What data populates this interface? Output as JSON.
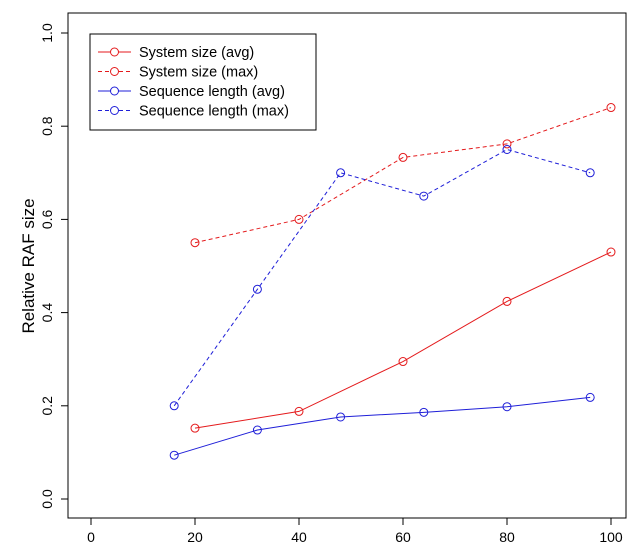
{
  "chart_data": {
    "type": "line",
    "title": "",
    "xlabel": "",
    "ylabel": "Relative RAF size",
    "xlim": [
      0,
      100
    ],
    "ylim": [
      0.0,
      1.0
    ],
    "x_ticks": [
      0,
      20,
      40,
      60,
      80,
      100
    ],
    "y_ticks": [
      0.0,
      0.2,
      0.4,
      0.6,
      0.8,
      1.0
    ],
    "x_tick_labels": [
      "0",
      "20",
      "40",
      "60",
      "80",
      "100"
    ],
    "y_tick_labels": [
      "0.0",
      "0.2",
      "0.4",
      "0.6",
      "0.8",
      "1.0"
    ],
    "grid": false,
    "legend_position": "top-left",
    "series": [
      {
        "name": "System size (avg)",
        "color": "#e41a1c",
        "dash": "solid",
        "marker": "open-circle",
        "x": [
          20,
          40,
          60,
          80,
          100
        ],
        "values": [
          0.152,
          0.188,
          0.295,
          0.424,
          0.53
        ]
      },
      {
        "name": "System size (max)",
        "color": "#e41a1c",
        "dash": "dashed",
        "marker": "open-circle",
        "x": [
          20,
          40,
          60,
          80,
          100
        ],
        "values": [
          0.55,
          0.6,
          0.733,
          0.762,
          0.84
        ]
      },
      {
        "name": "Sequence length (avg)",
        "color": "#1f1fd8",
        "dash": "solid",
        "marker": "open-circle",
        "x": [
          16,
          32,
          48,
          64,
          80,
          96
        ],
        "values": [
          0.094,
          0.148,
          0.176,
          0.186,
          0.198,
          0.218
        ]
      },
      {
        "name": "Sequence length (max)",
        "color": "#1f1fd8",
        "dash": "dashed",
        "marker": "open-circle",
        "x": [
          16,
          32,
          48,
          64,
          80,
          96
        ],
        "values": [
          0.2,
          0.45,
          0.7,
          0.65,
          0.75,
          0.7
        ]
      }
    ]
  }
}
